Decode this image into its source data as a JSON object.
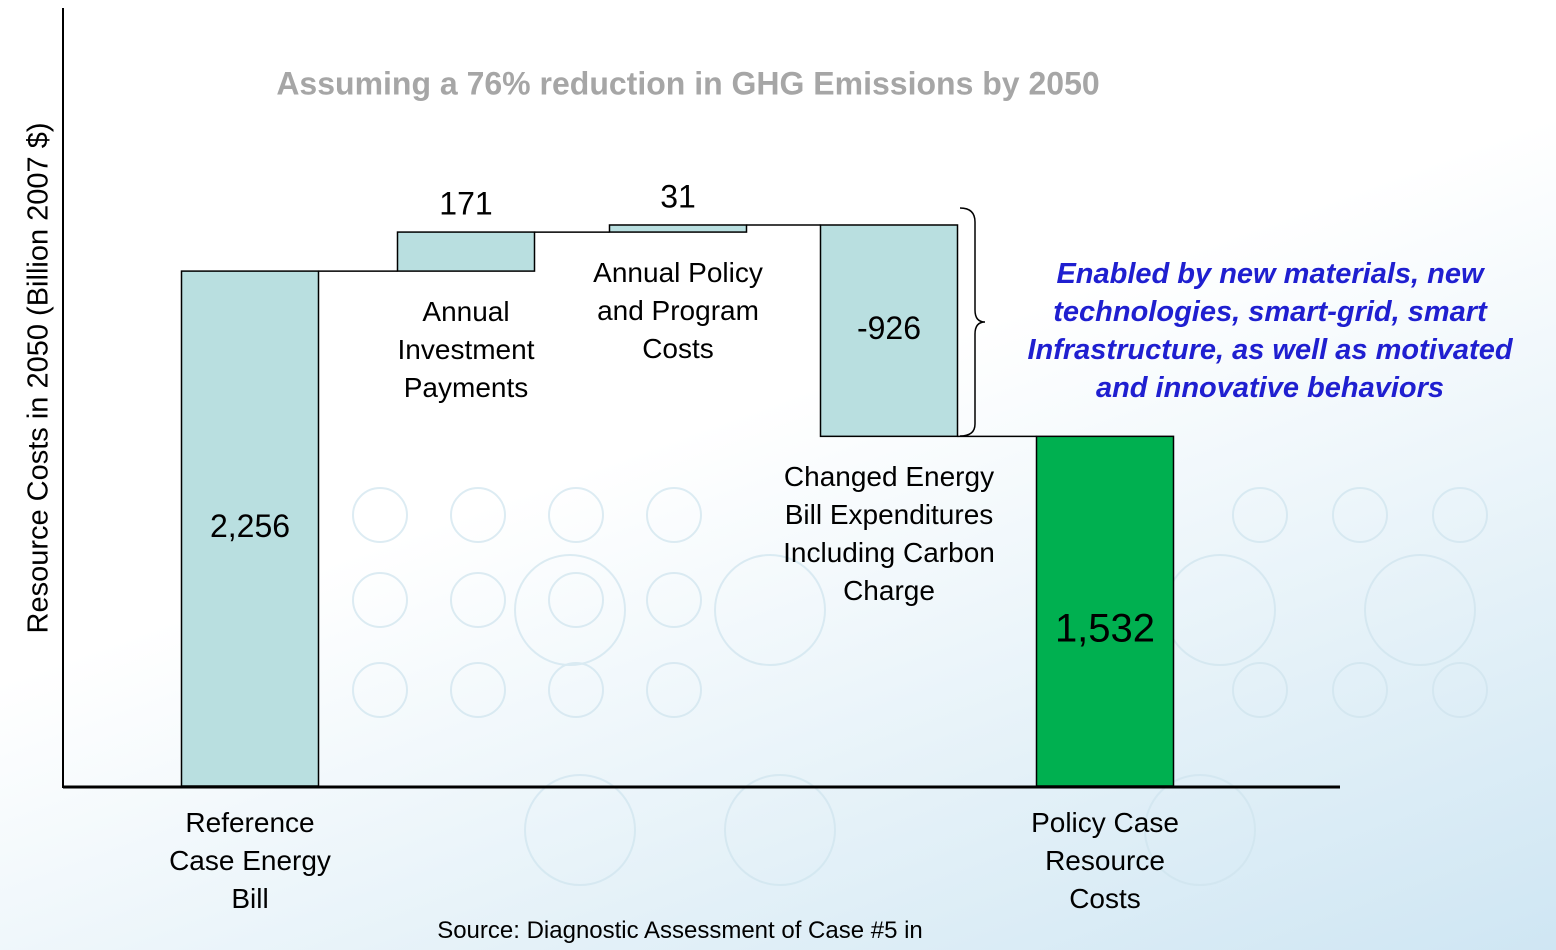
{
  "chart_data": {
    "type": "waterfall",
    "subtitle": "Assuming a 76% reduction in GHG Emissions by 2050",
    "y_label": "Resource Costs in 2050 (Billion 2007 $)",
    "categories": [
      "Reference Case Energy Bill",
      "Annual Investment Payments",
      "Annual Policy and Program Costs",
      "Changed Energy Bill Expenditures Including Carbon Charge",
      "Policy Case Resource Costs"
    ],
    "values": [
      2256,
      171,
      31,
      -926,
      1532
    ],
    "value_labels": [
      "2,256",
      "171",
      "31",
      "-926",
      "1,532"
    ],
    "totals": [
      true,
      false,
      false,
      false,
      true
    ],
    "colors": [
      "#b9dfe0",
      "#b9dfe0",
      "#b9dfe0",
      "#b9dfe0",
      "#00b050"
    ],
    "ylim": [
      0,
      3400
    ],
    "annotation": "Enabled by new materials, new technologies, smart-grid, smart Infrastructure, as well as motivated and innovative behaviors",
    "source": "Source: Diagnostic Assessment of Case #5 in"
  }
}
